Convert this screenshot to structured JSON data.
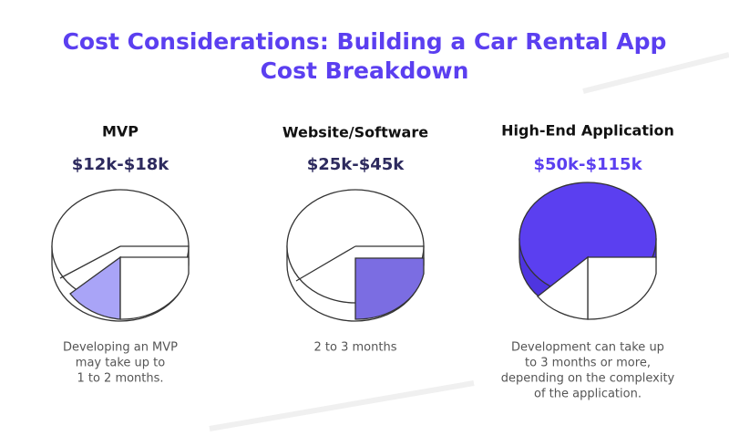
{
  "header": {
    "title_lines": [
      "Cost Considerations: Building a Car Rental App",
      "Cost Breakdown"
    ]
  },
  "options": [
    {
      "name": "MVP",
      "price": "$12k-$18k",
      "description_lines": [
        "Developing an MVP",
        "may take up to",
        "1 to 2 months."
      ]
    },
    {
      "name": "Website/Software",
      "price": "$25k-$45k",
      "description_lines": [
        "2 to 3 months"
      ]
    },
    {
      "name": "High-End Application",
      "price": "$50k-$115k",
      "description_lines": [
        "Development can take up",
        "to 3 months or more,",
        "depending on the complexity",
        "of the application."
      ]
    }
  ]
}
